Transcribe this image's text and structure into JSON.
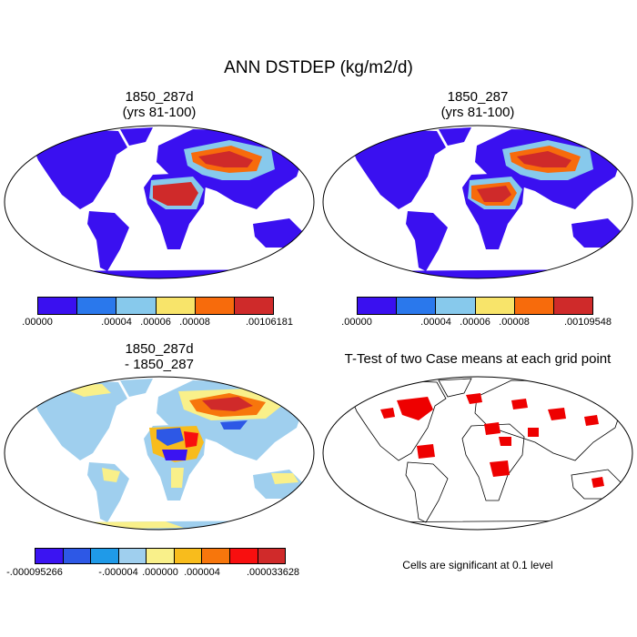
{
  "figure": {
    "title": "ANN DSTDEP (kg/m2/d)"
  },
  "panels": [
    {
      "id": "case1",
      "title_line1": "1850_287d",
      "title_line2": "(yrs 81-100)",
      "colorbar": {
        "colors": [
          "#3a10f0",
          "#2a78ec",
          "#87c9ec",
          "#f8e46a",
          "#f76b0c",
          "#cf2a2a"
        ],
        "labels": [
          ".00000",
          ".00004",
          ".00006",
          ".00008",
          ".00106181"
        ]
      }
    },
    {
      "id": "case2",
      "title_line1": "1850_287",
      "title_line2": "(yrs 81-100)",
      "colorbar": {
        "colors": [
          "#3a10f0",
          "#2a78ec",
          "#87c9ec",
          "#f8e46a",
          "#f76b0c",
          "#cf2a2a"
        ],
        "labels": [
          ".00000",
          ".00004",
          ".00006",
          ".00008",
          ".00109548"
        ]
      }
    },
    {
      "id": "difference",
      "title_line1": "1850_287d",
      "title_line2": "- 1850_287",
      "colorbar": {
        "colors": [
          "#3b14f2",
          "#2d58e6",
          "#1f9ae8",
          "#9fcfee",
          "#f9f08a",
          "#f8bc1c",
          "#f7760c",
          "#f80f0f",
          "#d02a2a"
        ],
        "labels": [
          "-.000095266",
          "-.000004",
          ".000000",
          ".000004",
          ".000033628"
        ]
      }
    },
    {
      "id": "ttest",
      "title_line1": "T-Test of two Case means at each grid point",
      "note": "Cells are significant at 0.1 level",
      "significance_color": "#ee0000"
    }
  ]
}
